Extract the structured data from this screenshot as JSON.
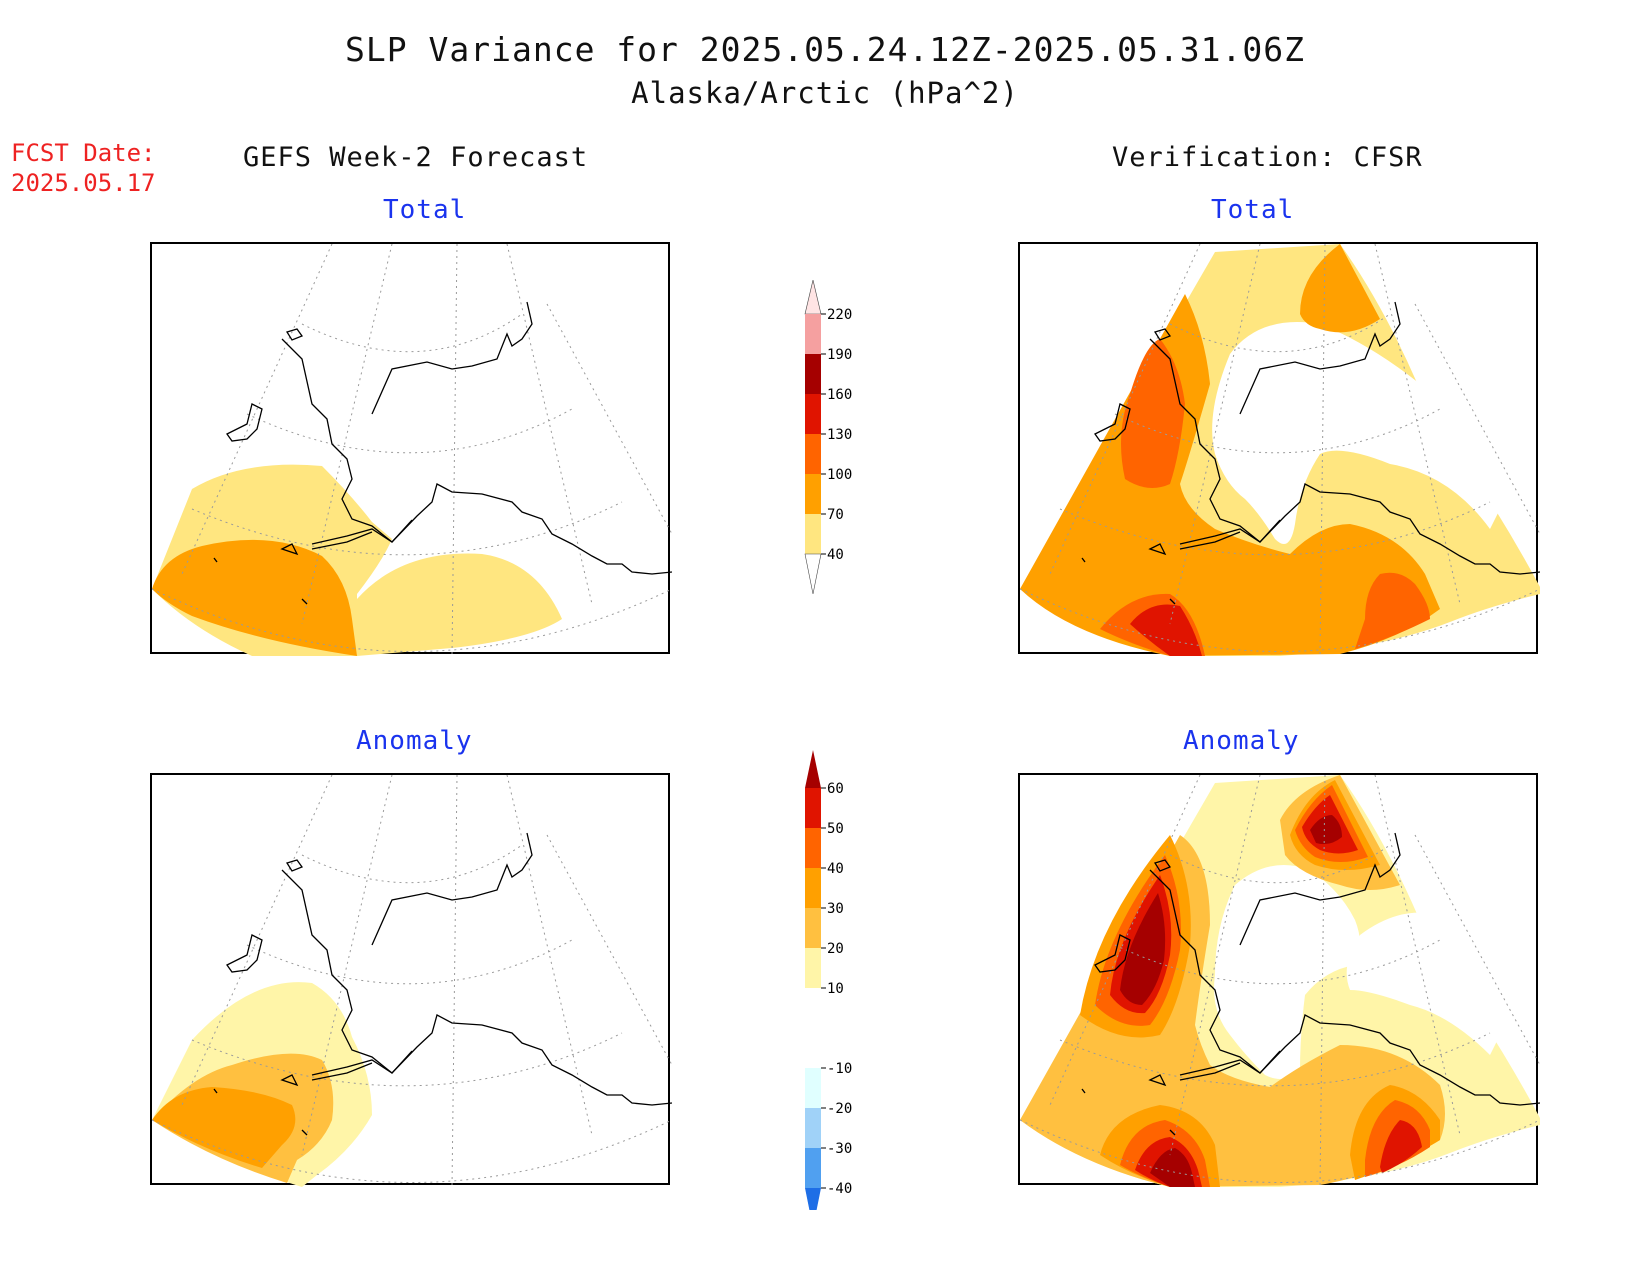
{
  "figure": {
    "title": "SLP Variance for 2025.05.24.12Z-2025.05.31.06Z",
    "subtitle": "Alaska/Arctic (hPa^2)",
    "fcst_label": "FCST Date:",
    "fcst_date": "2025.05.17",
    "left_column": "GEFS Week-2 Forecast",
    "right_column": "Verification: CFSR"
  },
  "panels": {
    "forecast_total": {
      "label": "Total"
    },
    "verification_total": {
      "label": "Total"
    },
    "forecast_anomaly": {
      "label": "Anomaly"
    },
    "verification_anomaly": {
      "label": "Anomaly"
    }
  },
  "colors": {
    "total": [
      "#ffe680",
      "#ffa000",
      "#ff6400",
      "#e01400",
      "#a50000",
      "#f5a0a0",
      "#ffe4e4"
    ],
    "anomaly_pos": [
      "#fff5a8",
      "#ffc040",
      "#ffa000",
      "#ff6400",
      "#e01400",
      "#a50000"
    ],
    "anomaly_neg": [
      "#e0ffff",
      "#a0d2f8",
      "#50a0f0",
      "#1e6ee6"
    ],
    "title_text": "#111111",
    "panel_label_text": "#1a33ee",
    "fcst_text": "#ee2222"
  },
  "colorbars": {
    "total": {
      "ticks": [
        "40",
        "70",
        "100",
        "130",
        "160",
        "190",
        "220"
      ]
    },
    "anomaly": {
      "ticks": [
        "-40",
        "-30",
        "-20",
        "-10",
        "10",
        "20",
        "30",
        "40",
        "50",
        "60"
      ]
    }
  }
}
